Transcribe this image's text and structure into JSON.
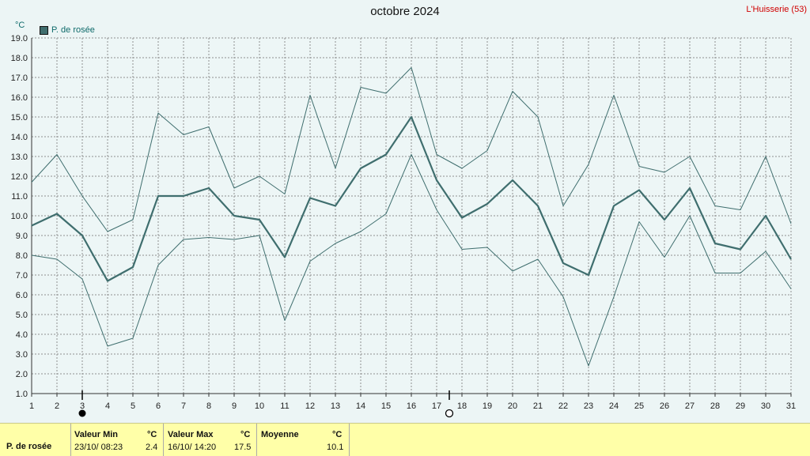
{
  "header": {
    "title": "octobre 2024",
    "station": "L'Huisserie (53)",
    "unit": "°C",
    "legend": "P. de rosée",
    "accent": "#3f6e6e"
  },
  "chart_data": {
    "type": "line",
    "x": [
      1,
      2,
      3,
      4,
      5,
      6,
      7,
      8,
      9,
      10,
      11,
      12,
      13,
      14,
      15,
      16,
      17,
      18,
      19,
      20,
      21,
      22,
      23,
      24,
      25,
      26,
      27,
      28,
      29,
      30,
      31
    ],
    "ylim": [
      1,
      19
    ],
    "yticks": [
      "1.0",
      "2.0",
      "3.0",
      "4.0",
      "5.0",
      "6.0",
      "7.0",
      "8.0",
      "9.0",
      "10.0",
      "11.0",
      "12.0",
      "13.0",
      "14.0",
      "15.0",
      "16.0",
      "17.0",
      "18.0",
      "19.0"
    ],
    "grid": true,
    "series": [
      {
        "name": "P. de rosée",
        "role": "mean",
        "values": [
          9.5,
          10.1,
          9.0,
          6.7,
          7.4,
          11.0,
          11.0,
          11.4,
          10.0,
          9.8,
          7.9,
          10.9,
          10.5,
          12.4,
          13.1,
          15.0,
          11.8,
          9.9,
          10.6,
          11.8,
          10.5,
          7.6,
          7.0,
          10.5,
          11.3,
          9.8,
          11.4,
          8.6,
          8.3,
          10.0,
          7.8
        ]
      },
      {
        "role": "max",
        "values": [
          11.7,
          13.1,
          11.0,
          9.2,
          9.8,
          15.2,
          14.1,
          14.5,
          11.4,
          12.0,
          11.1,
          16.1,
          12.4,
          16.5,
          16.2,
          17.5,
          13.1,
          12.4,
          13.3,
          16.3,
          15.0,
          10.5,
          12.6,
          16.1,
          12.5,
          12.2,
          13.0,
          10.5,
          10.3,
          13.0,
          9.6
        ]
      },
      {
        "role": "min",
        "values": [
          8.0,
          7.8,
          6.8,
          3.4,
          3.8,
          7.5,
          8.8,
          8.9,
          8.8,
          9.0,
          4.7,
          7.7,
          8.6,
          9.2,
          10.1,
          13.1,
          10.3,
          8.3,
          8.4,
          7.2,
          7.8,
          5.9,
          2.4,
          5.9,
          9.7,
          7.9,
          10.0,
          7.1,
          7.1,
          8.2,
          6.3
        ]
      }
    ],
    "colors": {
      "line": "#3f6e6e",
      "grid": "#909090",
      "axis": "#333333"
    },
    "markers": [
      {
        "day": 3,
        "symbol": "filled-circle"
      },
      {
        "day": 17.5,
        "symbol": "open-circle"
      }
    ]
  },
  "footer": {
    "label": "P. de rosée",
    "min_header": "Valeur Min",
    "min_unit": "°C",
    "min_when": "23/10/  08:23",
    "min_value": "2.4",
    "max_header": "Valeur Max",
    "max_unit": "°C",
    "max_when": "16/10/  14:20",
    "max_value": "17.5",
    "avg_header": "Moyenne",
    "avg_unit": "°C",
    "avg_value": "10.1"
  }
}
